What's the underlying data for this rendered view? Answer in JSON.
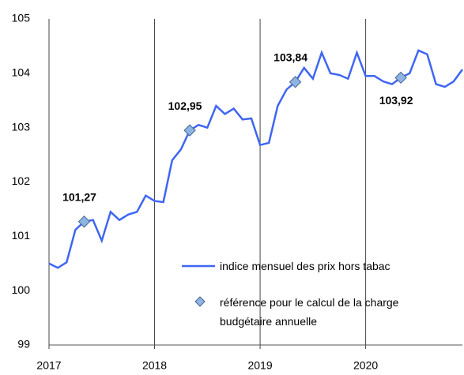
{
  "chart_data": {
    "type": "line",
    "categories": [
      "2017",
      null,
      null,
      null,
      null,
      null,
      null,
      null,
      null,
      null,
      null,
      null,
      "2018",
      null,
      null,
      null,
      null,
      null,
      null,
      null,
      null,
      null,
      null,
      null,
      "2019",
      null,
      null,
      null,
      null,
      null,
      null,
      null,
      null,
      null,
      null,
      null,
      "2020",
      null,
      null,
      null,
      null,
      null,
      null,
      null,
      null,
      null,
      null,
      null
    ],
    "series": [
      {
        "name": "indice mensuel des prix hors tabac",
        "color": "#3f66f2",
        "kind": "line",
        "values": [
          100.5,
          100.42,
          100.52,
          101.12,
          101.27,
          101.3,
          100.92,
          101.45,
          101.3,
          101.4,
          101.45,
          101.75,
          101.65,
          101.63,
          102.4,
          102.6,
          102.95,
          103.05,
          103.0,
          103.4,
          103.25,
          103.35,
          103.15,
          103.17,
          102.68,
          102.72,
          103.4,
          103.7,
          103.84,
          104.1,
          103.9,
          104.38,
          104.0,
          103.97,
          103.9,
          104.38,
          103.95,
          103.95,
          103.85,
          103.8,
          103.92,
          104.0,
          104.42,
          104.35,
          103.8,
          103.75,
          103.85,
          104.07
        ]
      },
      {
        "name": "référence pour le calcul de la charge budgétaire annuelle",
        "color": "#8db4e2",
        "kind": "marker",
        "values": [
          null,
          null,
          null,
          null,
          101.27,
          null,
          null,
          null,
          null,
          null,
          null,
          null,
          null,
          null,
          null,
          null,
          102.95,
          null,
          null,
          null,
          null,
          null,
          null,
          null,
          null,
          null,
          null,
          null,
          103.84,
          null,
          null,
          null,
          null,
          null,
          null,
          null,
          null,
          null,
          null,
          null,
          103.92,
          null,
          null,
          null,
          null,
          null,
          null,
          null
        ],
        "value_labels": [
          null,
          null,
          null,
          null,
          "101,27",
          null,
          null,
          null,
          null,
          null,
          null,
          null,
          null,
          null,
          null,
          null,
          "102,95",
          null,
          null,
          null,
          null,
          null,
          null,
          null,
          null,
          null,
          null,
          null,
          "103,84",
          null,
          null,
          null,
          null,
          null,
          null,
          null,
          null,
          null,
          null,
          null,
          "103,92",
          null,
          null,
          null,
          null,
          null,
          null,
          null
        ]
      }
    ],
    "ylim": [
      99,
      105
    ],
    "yticks": [
      99,
      100,
      101,
      102,
      103,
      104,
      105
    ],
    "legend": "lower right"
  }
}
